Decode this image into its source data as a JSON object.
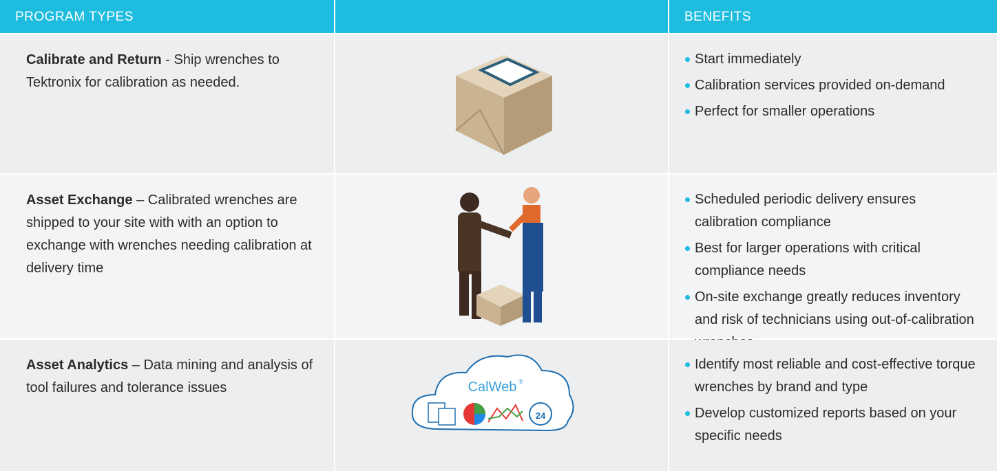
{
  "header": {
    "columns": [
      "PROGRAM TYPES",
      "BENEFITS"
    ]
  },
  "rows": [
    {
      "name": "Calibrate and Return",
      "description": "- Ship wrenches to Tektronix for calibration as needed.",
      "benefits": [
        "Start immediately",
        "Calibration services provided on-demand",
        "Perfect for smaller operations"
      ]
    },
    {
      "name": "Asset Exchange",
      "description": "– Calibrated wrenches are shipped to your site with with an option to exchange with wrenches needing calibration at delivery time",
      "benefits": [
        "Scheduled periodic delivery ensures calibration compliance",
        "Best for larger operations with critical compliance needs",
        "On-site exchange greatly reduces inventory and risk of technicians using out-of-calibration wrenches"
      ]
    },
    {
      "name": "Asset Analytics",
      "description": "– Data mining and analysis of tool failures and tolerance issues",
      "benefits": [
        "Identify most reliable and cost-effective torque wrenches by brand and type",
        "Develop customized reports based on your specific needs"
      ],
      "image_text": "CalWeb",
      "image_mark": "®",
      "clock_text": "24"
    }
  ]
}
